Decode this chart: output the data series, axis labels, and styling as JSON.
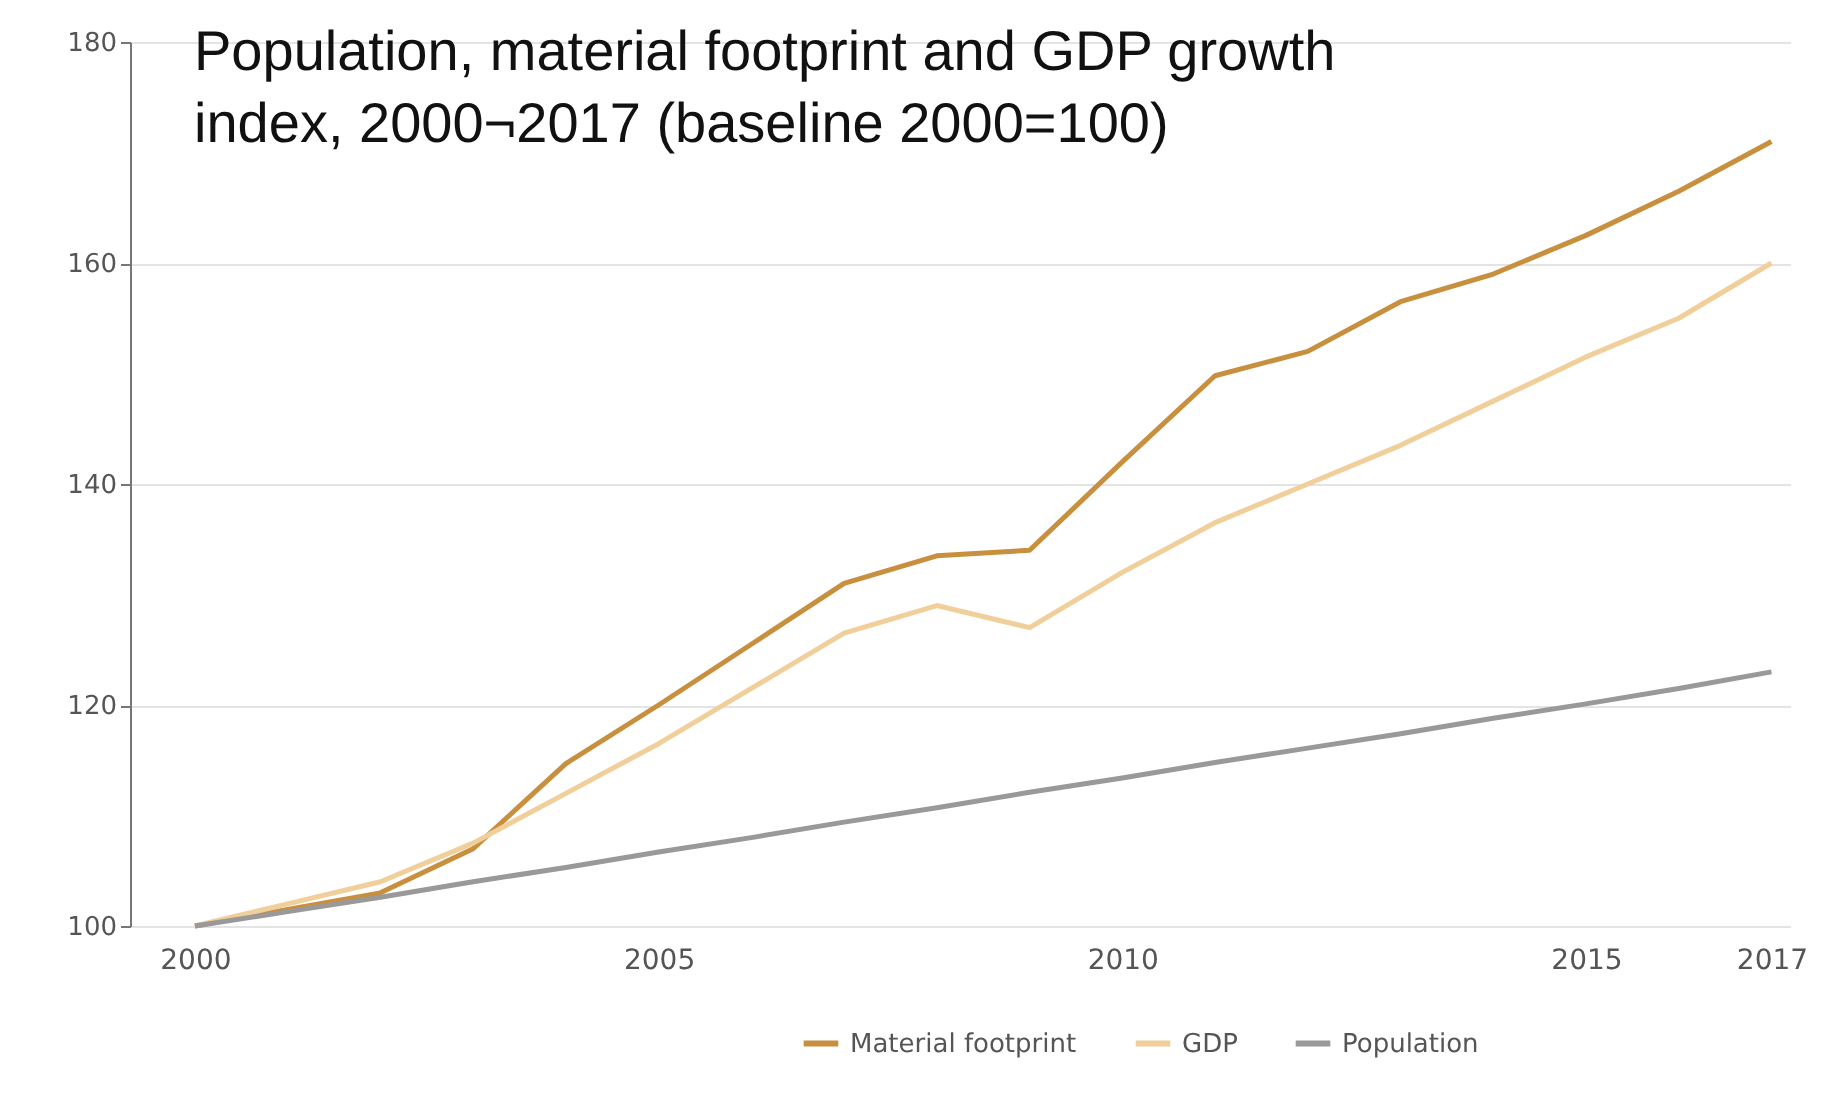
{
  "chart_data": {
    "type": "line",
    "title": "Population, material footprint and GDP growth\nindex, 2000¬2017 (baseline 2000=100)",
    "x": [
      2000,
      2001,
      2002,
      2003,
      2004,
      2005,
      2006,
      2007,
      2008,
      2009,
      2010,
      2011,
      2012,
      2013,
      2014,
      2015,
      2016,
      2017
    ],
    "series": [
      {
        "name": "Material footprint",
        "color": "#c8903e",
        "values": [
          100,
          101.5,
          103,
          107,
          114.7,
          120,
          125.5,
          131,
          133.5,
          134,
          142,
          149.8,
          152,
          156.5,
          159,
          162.5,
          166.5,
          171
        ]
      },
      {
        "name": "GDP",
        "color": "#f0cf9a",
        "values": [
          100,
          102,
          104,
          107.5,
          112,
          116.5,
          121.5,
          126.5,
          129,
          127,
          132,
          136.5,
          140,
          143.5,
          147.5,
          151.5,
          155,
          160
        ]
      },
      {
        "name": "Population",
        "color": "#999999",
        "values": [
          100,
          101.3,
          102.6,
          104,
          105.3,
          106.7,
          108,
          109.4,
          110.7,
          112.1,
          113.4,
          114.8,
          116.1,
          117.4,
          118.8,
          120.1,
          121.5,
          123
        ]
      }
    ],
    "xlim": [
      1999.3,
      2017.2
    ],
    "xticks": [
      2000,
      2005,
      2010,
      2015,
      2017
    ],
    "ylim": [
      100,
      180
    ],
    "yticks": [
      100,
      120,
      140,
      160,
      180
    ],
    "grid": "y",
    "legend": "bottom right",
    "marker": "none",
    "line_style": "solid"
  }
}
